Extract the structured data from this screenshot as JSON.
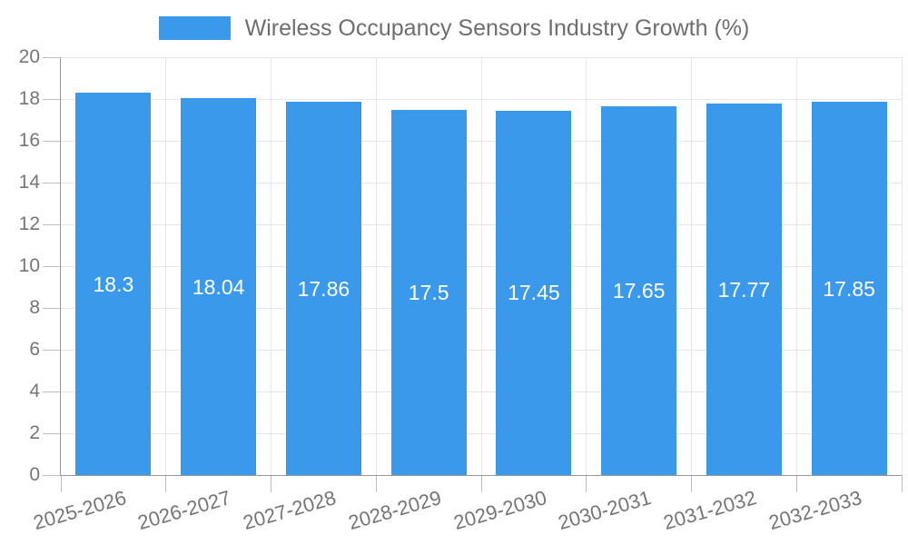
{
  "legend": {
    "label": "Wireless Occupancy Sensors Industry Growth (%)"
  },
  "chart_data": {
    "type": "bar",
    "title": "Wireless Occupancy Sensors Industry Growth (%)",
    "categories": [
      "2025-2026",
      "2026-2027",
      "2027-2028",
      "2028-2029",
      "2029-2030",
      "2030-2031",
      "2031-2032",
      "2032-2033"
    ],
    "values": [
      18.3,
      18.04,
      17.86,
      17.5,
      17.45,
      17.65,
      17.77,
      17.85
    ],
    "xlabel": "",
    "ylabel": "",
    "ylim": [
      0,
      20
    ],
    "yticks": [
      0,
      2,
      4,
      6,
      8,
      10,
      12,
      14,
      16,
      18,
      20
    ],
    "grid": true,
    "legend_position": "top",
    "value_labels_inside_bars": true,
    "colors": {
      "bar": "#3b99ec",
      "bar_label": "#ffffff",
      "axis_text": "#757575",
      "title_text": "#6e6e6e",
      "grid_line": "#e6e6e6",
      "axis_line": "#999999",
      "tick_line": "#bdbdbd",
      "background": "#ffffff"
    }
  }
}
